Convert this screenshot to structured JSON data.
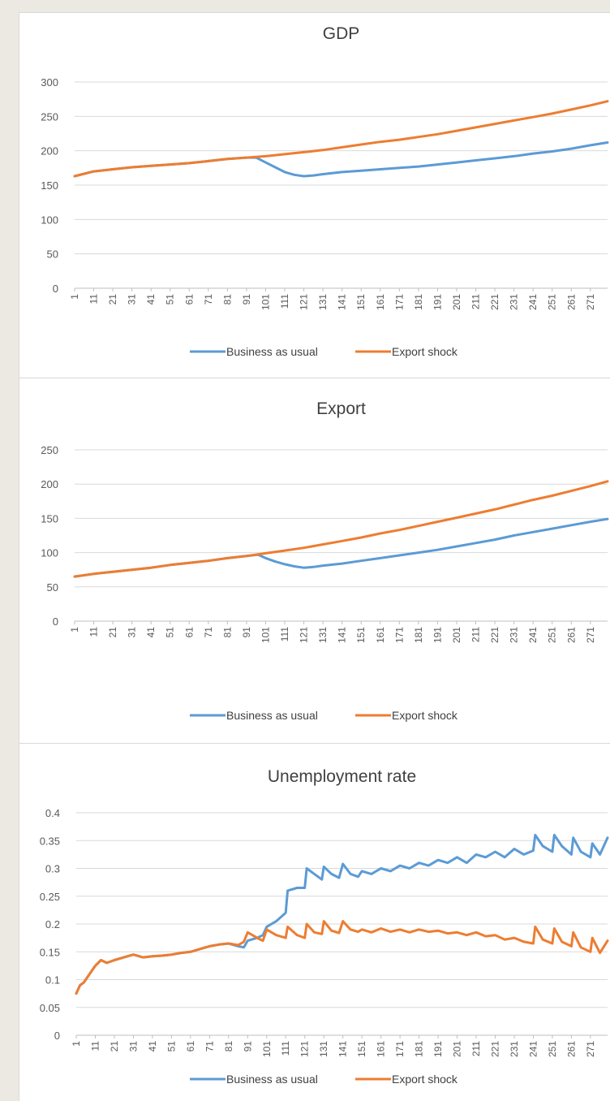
{
  "chart_data": [
    {
      "type": "line",
      "title": "GDP",
      "ylim": [
        0,
        300
      ],
      "yticks": [
        "0",
        "50",
        "100",
        "150",
        "200",
        "250",
        "300"
      ],
      "x_tick_labels": [
        "1",
        "11",
        "21",
        "31",
        "41",
        "51",
        "61",
        "71",
        "81",
        "91",
        "101",
        "111",
        "121",
        "131",
        "141",
        "151",
        "161",
        "171",
        "181",
        "191",
        "201",
        "211",
        "221",
        "231",
        "241",
        "251",
        "261",
        "271"
      ],
      "x_range": [
        1,
        280
      ],
      "grid": true,
      "legend_position": "bottom",
      "series": [
        {
          "name": "Business as usual",
          "color": "#5b9bd5",
          "x": [
            1,
            11,
            21,
            31,
            41,
            51,
            61,
            71,
            81,
            91,
            96,
            101,
            106,
            111,
            116,
            121,
            126,
            131,
            141,
            151,
            161,
            171,
            181,
            191,
            201,
            211,
            221,
            231,
            241,
            251,
            261,
            271,
            280
          ],
          "y": [
            163,
            170,
            173,
            176,
            178,
            180,
            182,
            185,
            188,
            190,
            190,
            183,
            176,
            169,
            165,
            163,
            164,
            166,
            169,
            171,
            173,
            175,
            177,
            180,
            183,
            186,
            189,
            192,
            196,
            199,
            203,
            208,
            212
          ]
        },
        {
          "name": "Export shock",
          "color": "#ed7d31",
          "x": [
            1,
            11,
            21,
            31,
            41,
            51,
            61,
            71,
            81,
            91,
            101,
            111,
            121,
            131,
            141,
            151,
            161,
            171,
            181,
            191,
            201,
            211,
            221,
            231,
            241,
            251,
            261,
            271,
            280
          ],
          "y": [
            163,
            170,
            173,
            176,
            178,
            180,
            182,
            185,
            188,
            190,
            192,
            195,
            198,
            201,
            205,
            209,
            213,
            216,
            220,
            224,
            229,
            234,
            239,
            244,
            249,
            254,
            260,
            266,
            272
          ]
        }
      ]
    },
    {
      "type": "line",
      "title": "Export",
      "ylim": [
        0,
        250
      ],
      "yticks": [
        "0",
        "50",
        "100",
        "150",
        "200",
        "250"
      ],
      "x_tick_labels": [
        "1",
        "11",
        "21",
        "31",
        "41",
        "51",
        "61",
        "71",
        "81",
        "91",
        "101",
        "111",
        "121",
        "131",
        "141",
        "151",
        "161",
        "171",
        "181",
        "191",
        "201",
        "211",
        "221",
        "231",
        "241",
        "251",
        "261",
        "271"
      ],
      "x_range": [
        1,
        280
      ],
      "grid": true,
      "legend_position": "bottom",
      "series": [
        {
          "name": "Business as usual",
          "color": "#5b9bd5",
          "x": [
            1,
            11,
            21,
            31,
            41,
            51,
            61,
            71,
            81,
            91,
            97,
            101,
            106,
            111,
            116,
            121,
            126,
            131,
            141,
            151,
            161,
            171,
            181,
            191,
            201,
            211,
            221,
            231,
            241,
            251,
            261,
            271,
            280
          ],
          "y": [
            65,
            69,
            72,
            75,
            78,
            82,
            85,
            88,
            92,
            95,
            97,
            92,
            87,
            83,
            80,
            78,
            79,
            81,
            84,
            88,
            92,
            96,
            100,
            104,
            109,
            114,
            119,
            125,
            130,
            135,
            140,
            145,
            149
          ]
        },
        {
          "name": "Export shock",
          "color": "#ed7d31",
          "x": [
            1,
            11,
            21,
            31,
            41,
            51,
            61,
            71,
            81,
            91,
            101,
            111,
            121,
            131,
            141,
            151,
            161,
            171,
            181,
            191,
            201,
            211,
            221,
            231,
            241,
            251,
            261,
            271,
            280
          ],
          "y": [
            65,
            69,
            72,
            75,
            78,
            82,
            85,
            88,
            92,
            95,
            99,
            103,
            107,
            112,
            117,
            122,
            128,
            133,
            139,
            145,
            151,
            157,
            163,
            170,
            177,
            183,
            190,
            197,
            204
          ]
        }
      ]
    },
    {
      "type": "line",
      "title": "Unemployment rate",
      "ylim": [
        0,
        0.4
      ],
      "yticks": [
        "0",
        "0.05",
        "0.1",
        "0.15",
        "0.2",
        "0.25",
        "0.3",
        "0.35",
        "0.4"
      ],
      "x_tick_labels": [
        "1",
        "11",
        "21",
        "31",
        "41",
        "51",
        "61",
        "71",
        "81",
        "91",
        "101",
        "111",
        "121",
        "131",
        "141",
        "151",
        "161",
        "171",
        "181",
        "191",
        "201",
        "211",
        "221",
        "231",
        "241",
        "251",
        "261",
        "271"
      ],
      "x_range": [
        1,
        280
      ],
      "grid": true,
      "legend_position": "bottom",
      "series": [
        {
          "name": "Business as usual",
          "color": "#5b9bd5",
          "x": [
            1,
            3,
            5,
            8,
            11,
            14,
            17,
            21,
            26,
            31,
            36,
            41,
            46,
            51,
            56,
            61,
            66,
            71,
            76,
            81,
            86,
            89,
            91,
            96,
            99,
            101,
            106,
            111,
            112,
            117,
            121,
            122,
            126,
            130,
            131,
            135,
            139,
            141,
            145,
            149,
            151,
            156,
            161,
            166,
            171,
            176,
            181,
            186,
            191,
            196,
            201,
            206,
            211,
            216,
            221,
            226,
            231,
            236,
            241,
            242,
            246,
            251,
            252,
            256,
            261,
            262,
            266,
            271,
            272,
            276,
            280
          ],
          "y": [
            0.075,
            0.09,
            0.095,
            0.11,
            0.125,
            0.135,
            0.13,
            0.135,
            0.14,
            0.145,
            0.14,
            0.142,
            0.143,
            0.145,
            0.148,
            0.15,
            0.155,
            0.16,
            0.163,
            0.165,
            0.16,
            0.158,
            0.17,
            0.175,
            0.18,
            0.195,
            0.205,
            0.22,
            0.26,
            0.265,
            0.265,
            0.3,
            0.29,
            0.28,
            0.303,
            0.29,
            0.283,
            0.308,
            0.29,
            0.285,
            0.295,
            0.29,
            0.3,
            0.295,
            0.305,
            0.3,
            0.31,
            0.305,
            0.315,
            0.31,
            0.32,
            0.31,
            0.325,
            0.32,
            0.33,
            0.32,
            0.335,
            0.325,
            0.332,
            0.36,
            0.34,
            0.33,
            0.36,
            0.34,
            0.325,
            0.355,
            0.33,
            0.32,
            0.345,
            0.325,
            0.355
          ]
        },
        {
          "name": "Export shock",
          "color": "#ed7d31",
          "x": [
            1,
            3,
            5,
            8,
            11,
            14,
            17,
            21,
            26,
            31,
            36,
            41,
            46,
            51,
            56,
            61,
            66,
            71,
            76,
            81,
            86,
            89,
            91,
            96,
            99,
            101,
            106,
            111,
            112,
            117,
            121,
            122,
            126,
            130,
            131,
            135,
            139,
            141,
            145,
            149,
            151,
            156,
            161,
            166,
            171,
            176,
            181,
            186,
            191,
            196,
            201,
            206,
            211,
            216,
            221,
            226,
            231,
            236,
            241,
            242,
            246,
            251,
            252,
            256,
            261,
            262,
            266,
            271,
            272,
            276,
            280
          ],
          "y": [
            0.075,
            0.09,
            0.095,
            0.11,
            0.125,
            0.135,
            0.13,
            0.135,
            0.14,
            0.145,
            0.14,
            0.142,
            0.143,
            0.145,
            0.148,
            0.15,
            0.155,
            0.16,
            0.163,
            0.165,
            0.162,
            0.168,
            0.185,
            0.175,
            0.17,
            0.19,
            0.18,
            0.175,
            0.195,
            0.18,
            0.175,
            0.2,
            0.185,
            0.182,
            0.205,
            0.188,
            0.184,
            0.205,
            0.19,
            0.186,
            0.19,
            0.185,
            0.192,
            0.186,
            0.19,
            0.185,
            0.19,
            0.186,
            0.188,
            0.183,
            0.185,
            0.18,
            0.185,
            0.178,
            0.18,
            0.172,
            0.175,
            0.168,
            0.165,
            0.195,
            0.172,
            0.165,
            0.192,
            0.168,
            0.16,
            0.185,
            0.158,
            0.15,
            0.175,
            0.148,
            0.17
          ]
        }
      ]
    }
  ]
}
